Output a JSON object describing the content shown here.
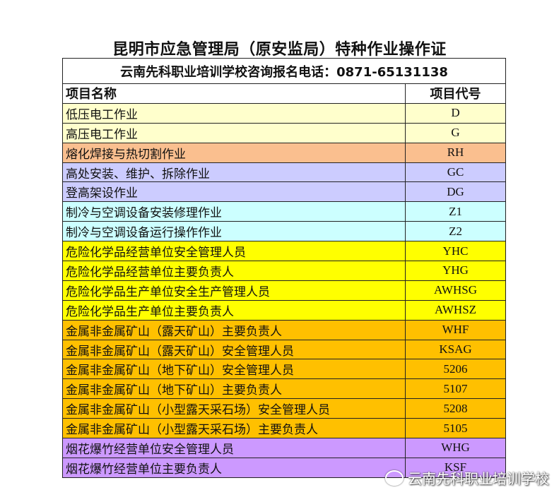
{
  "title": "昆明市应急管理局（原安监局）特种作业操作证",
  "phone_line": "云南先科职业培训学校咨询报名电话：0871-65131138",
  "headers": {
    "name": "项目名称",
    "code": "项目代号"
  },
  "rows": [
    {
      "name": "低压电工作业",
      "code": "D",
      "color": "#FFFFCC"
    },
    {
      "name": "高压电工作业",
      "code": "G",
      "color": "#FFFFCC"
    },
    {
      "name": "熔化焊接与热切割作业",
      "code": "RH",
      "color": "#FABF8F"
    },
    {
      "name": "高处安装、维护、拆除作业",
      "code": "GC",
      "color": "#CCCCFF"
    },
    {
      "name": "登高架设作业",
      "code": "DG",
      "color": "#CCCCFF"
    },
    {
      "name": "制冷与空调设备安装修理作业",
      "code": "Z1",
      "color": "#CCFFFF"
    },
    {
      "name": "制冷与空调设备运行操作作业",
      "code": "Z2",
      "color": "#CCFFFF"
    },
    {
      "name": "危险化学品经营单位安全管理人员",
      "code": "YHC",
      "color": "#FFFF00"
    },
    {
      "name": "危险化学品经营单位主要负责人",
      "code": "YHG",
      "color": "#FFFF00"
    },
    {
      "name": "危险化学品生产单位安全生产管理人员",
      "code": "AWHSG",
      "color": "#FFFF00"
    },
    {
      "name": "危险化学品生产单位主要负责人",
      "code": "AWHSZ",
      "color": "#FFFF00"
    },
    {
      "name": "金属非金属矿山（露天矿山）主要负责人",
      "code": "WHF",
      "color": "#FFC000"
    },
    {
      "name": "金属非金属矿山（露天矿山）安全管理人员",
      "code": "KSAG",
      "color": "#FFC000"
    },
    {
      "name": "金属非金属矿山（地下矿山）安全管理人员",
      "code": "5206",
      "color": "#FFC000"
    },
    {
      "name": "金属非金属矿山（地下矿山）主要负责人",
      "code": "5107",
      "color": "#FFC000"
    },
    {
      "name": "金属非金属矿山（小型露天采石场）安全管理人员",
      "code": "5208",
      "color": "#FFC000"
    },
    {
      "name": "金属非金属矿山（小型露天采石场）主要负责人",
      "code": "5105",
      "color": "#FFC000"
    },
    {
      "name": "烟花爆竹经营单位安全管理人员",
      "code": "WHG",
      "color": "#CC99FF"
    },
    {
      "name": "烟花爆竹经营单位主要负责人",
      "code": "KSF",
      "color": "#CC99FF"
    }
  ],
  "watermark": {
    "icon": "wechat-icon",
    "text": "云南先科职业培训学校"
  }
}
